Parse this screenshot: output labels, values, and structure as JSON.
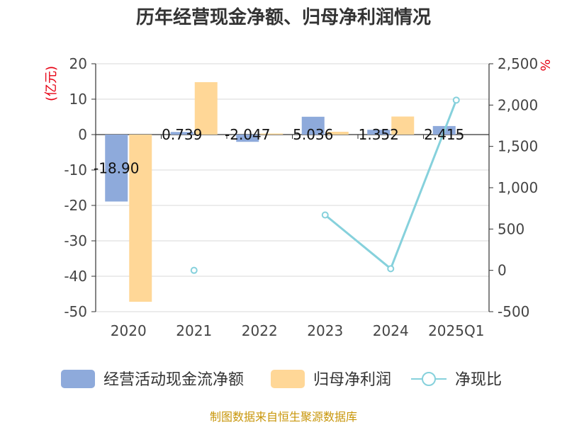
{
  "chart_data": {
    "type": "bar",
    "title": "历年经营现金净额、归母净利润情况",
    "categories": [
      "2020",
      "2021",
      "2022",
      "2023",
      "2024",
      "2025Q1"
    ],
    "series": [
      {
        "name": "经营活动现金流净额",
        "type": "bar",
        "axis": "left",
        "color": "#8eaadb",
        "values": [
          -18.9,
          0.739,
          -2.047,
          5.036,
          1.352,
          2.415
        ],
        "labels": [
          "-18.90",
          "0.739",
          "-2.047",
          "5.036",
          "1.352",
          "2.415"
        ]
      },
      {
        "name": "归母净利润",
        "type": "bar",
        "axis": "left",
        "color": "#ffd797",
        "values": [
          -47.2,
          14.8,
          0.3,
          0.8,
          5.1,
          null
        ]
      },
      {
        "name": "净现比",
        "type": "line",
        "axis": "right",
        "color": "#86d1dc",
        "values": [
          null,
          0,
          null,
          670,
          20,
          2060
        ]
      }
    ],
    "y_left": {
      "unit": "(亿元)",
      "ylim": [
        -50,
        20
      ],
      "ticks": [
        "-50",
        "-40",
        "-30",
        "-20",
        "-10",
        "0",
        "10",
        "20"
      ]
    },
    "y_right": {
      "unit": "%",
      "ylim": [
        -500,
        2500
      ],
      "ticks": [
        "-500",
        "0",
        "500",
        "1,000",
        "1,500",
        "2,000",
        "2,500"
      ]
    },
    "grid": true,
    "legend_position": "bottom"
  },
  "source_text": "制图数据来自恒生聚源数据库"
}
